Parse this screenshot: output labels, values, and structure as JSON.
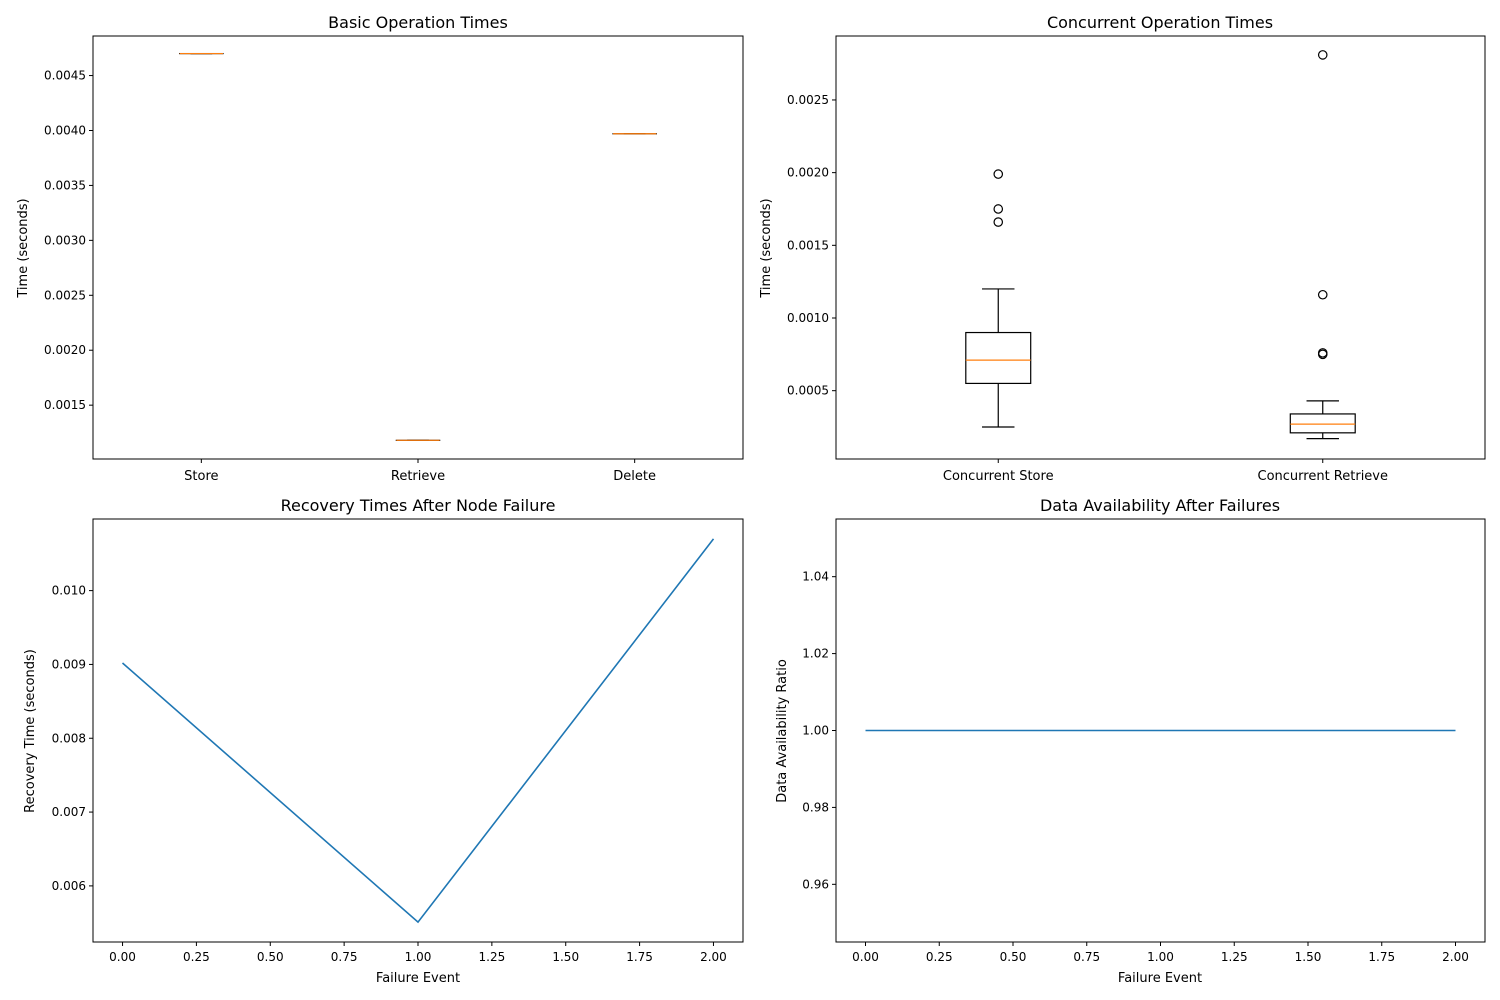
{
  "chart_data": [
    {
      "type": "box",
      "title": "Basic Operation Times",
      "xlabel": "",
      "ylabel": "Time (seconds)",
      "ylim": [
        0.00101,
        0.00486
      ],
      "yticks": [
        0.0015,
        0.002,
        0.0025,
        0.003,
        0.0035,
        0.004,
        0.0045
      ],
      "ytick_labels": [
        "0.0015",
        "0.0020",
        "0.0025",
        "0.0030",
        "0.0035",
        "0.0040",
        "0.0045"
      ],
      "categories": [
        "Store",
        "Retrieve",
        "Delete"
      ],
      "boxes": [
        {
          "whislo": 0.0047,
          "q1": 0.0047,
          "med": 0.0047,
          "q3": 0.0047,
          "whishi": 0.0047,
          "fliers": []
        },
        {
          "whislo": 0.00118,
          "q1": 0.00118,
          "med": 0.00118,
          "q3": 0.00118,
          "whishi": 0.00118,
          "fliers": []
        },
        {
          "whislo": 0.00397,
          "q1": 0.00397,
          "med": 0.00397,
          "q3": 0.00397,
          "whishi": 0.00397,
          "fliers": []
        }
      ]
    },
    {
      "type": "box",
      "title": "Concurrent Operation Times",
      "xlabel": "",
      "ylabel": "Time (seconds)",
      "ylim": [
        3e-05,
        0.00294
      ],
      "yticks": [
        0.0005,
        0.001,
        0.0015,
        0.002,
        0.0025
      ],
      "ytick_labels": [
        "0.0005",
        "0.0010",
        "0.0015",
        "0.0020",
        "0.0025"
      ],
      "categories": [
        "Concurrent Store",
        "Concurrent Retrieve"
      ],
      "boxes": [
        {
          "whislo": 0.00025,
          "q1": 0.00055,
          "med": 0.00071,
          "q3": 0.0009,
          "whishi": 0.0012,
          "fliers": [
            0.00166,
            0.00175,
            0.00199
          ]
        },
        {
          "whislo": 0.00017,
          "q1": 0.00021,
          "med": 0.00027,
          "q3": 0.00034,
          "whishi": 0.00043,
          "fliers": [
            0.00075,
            0.00076,
            0.00116,
            0.00281
          ]
        }
      ]
    },
    {
      "type": "line",
      "title": "Recovery Times After Node Failure",
      "xlabel": "Failure Event",
      "ylabel": "Recovery Time (seconds)",
      "xlim": [
        -0.1,
        2.1
      ],
      "ylim": [
        0.00524,
        0.01097
      ],
      "xticks": [
        0.0,
        0.25,
        0.5,
        0.75,
        1.0,
        1.25,
        1.5,
        1.75,
        2.0
      ],
      "xtick_labels": [
        "0.00",
        "0.25",
        "0.50",
        "0.75",
        "1.00",
        "1.25",
        "1.50",
        "1.75",
        "2.00"
      ],
      "yticks": [
        0.006,
        0.007,
        0.008,
        0.009,
        0.01
      ],
      "ytick_labels": [
        "0.006",
        "0.007",
        "0.008",
        "0.009",
        "0.010"
      ],
      "x": [
        0,
        1,
        2
      ],
      "y": [
        0.00902,
        0.00551,
        0.0107
      ],
      "color": "#1f77b4"
    },
    {
      "type": "line",
      "title": "Data Availability After Failures",
      "xlabel": "Failure Event",
      "ylabel": "Data Availability Ratio",
      "xlim": [
        -0.1,
        2.1
      ],
      "ylim": [
        0.945,
        1.055
      ],
      "xticks": [
        0.0,
        0.25,
        0.5,
        0.75,
        1.0,
        1.25,
        1.5,
        1.75,
        2.0
      ],
      "xtick_labels": [
        "0.00",
        "0.25",
        "0.50",
        "0.75",
        "1.00",
        "1.25",
        "1.50",
        "1.75",
        "2.00"
      ],
      "yticks": [
        0.96,
        0.98,
        1.0,
        1.02,
        1.04
      ],
      "ytick_labels": [
        "0.96",
        "0.98",
        "1.00",
        "1.02",
        "1.04"
      ],
      "x": [
        0,
        1,
        2
      ],
      "y": [
        1.0,
        1.0,
        1.0
      ],
      "color": "#1f77b4"
    }
  ],
  "colors": {
    "line": "#1f77b4",
    "median": "#ff7f0e",
    "box": "#000000"
  }
}
